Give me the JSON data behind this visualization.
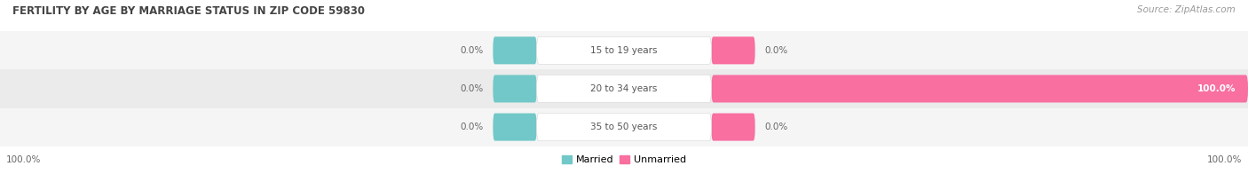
{
  "title": "FERTILITY BY AGE BY MARRIAGE STATUS IN ZIP CODE 59830",
  "source": "Source: ZipAtlas.com",
  "categories": [
    "15 to 19 years",
    "20 to 34 years",
    "35 to 50 years"
  ],
  "married_values": [
    0.0,
    0.0,
    0.0
  ],
  "unmarried_values": [
    0.0,
    100.0,
    0.0
  ],
  "married_color": "#72c8c8",
  "unmarried_color": "#f86fa0",
  "bar_bg_color": "#f2f2f2",
  "title_fontsize": 8.5,
  "source_fontsize": 7.5,
  "label_fontsize": 7.5,
  "category_fontsize": 7.5,
  "legend_fontsize": 8,
  "axis_label_fontsize": 7.5,
  "left_label": "100.0%",
  "right_label": "100.0%",
  "background_color": "#ffffff",
  "row_bg_colors": [
    "#f5f5f5",
    "#eeeeee",
    "#f5f5f5"
  ]
}
